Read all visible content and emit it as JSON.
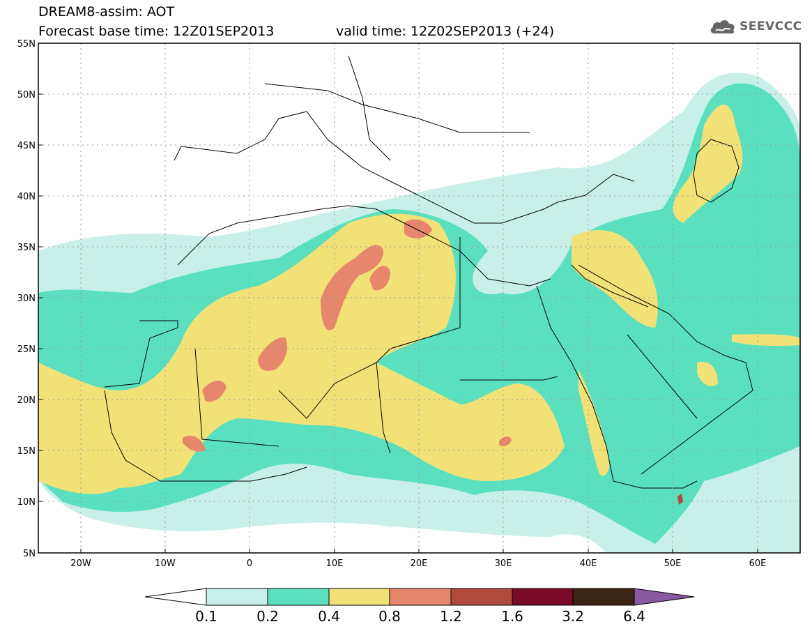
{
  "header": {
    "title": "DREAM8-assim: AOT",
    "base_time": "Forecast base time: 12Z01SEP2013",
    "valid_time": "valid time: 12Z02SEP2013 (+24)"
  },
  "logo": {
    "text": "SEEVCCC",
    "icon": "cloud-icon"
  },
  "map": {
    "lat_labels": [
      "55N",
      "50N",
      "45N",
      "40N",
      "35N",
      "30N",
      "25N",
      "20N",
      "15N",
      "10N",
      "5N"
    ],
    "lon_labels": [
      "20W",
      "10W",
      "0",
      "10E",
      "20E",
      "30E",
      "40E",
      "50E",
      "60E"
    ],
    "colors": {
      "background": "#ffffff",
      "c01": "#c8f0e8",
      "c02": "#5be0bf",
      "c04": "#f2e177",
      "c08": "#e6876c",
      "c12": "#b04a3d",
      "borders": "#000000"
    }
  },
  "colorbar": {
    "labels": [
      "0.1",
      "0.2",
      "0.4",
      "0.8",
      "1.2",
      "1.6",
      "3.2",
      "6.4"
    ],
    "colors": [
      "#ffffff",
      "#c8f0e8",
      "#5be0bf",
      "#f2e177",
      "#e6876c",
      "#b04a3d",
      "#7a0a2a",
      "#3a2414",
      "#8a5aa0"
    ]
  }
}
